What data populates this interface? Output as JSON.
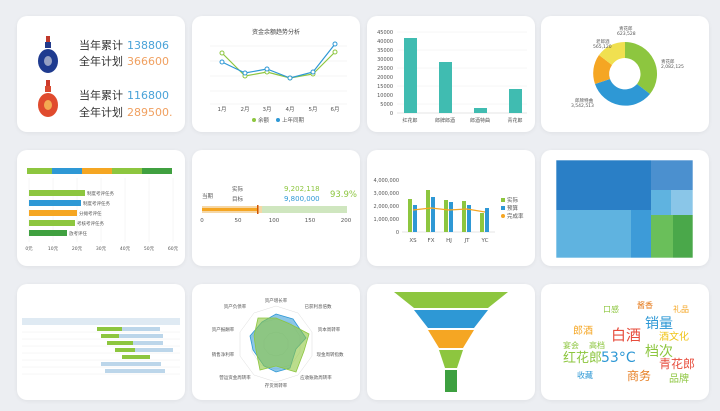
{
  "kpi": {
    "row1_label": "当年累计",
    "row1_value": "138806",
    "row2_label": "全年计划",
    "row2_value": "366600",
    "row3_label": "当年累计",
    "row3_value": "116800",
    "row4_label": "全年计划",
    "row4_value": "289500."
  },
  "line_chart": {
    "title": "资金余额趋势分析",
    "x": [
      "1月",
      "2月",
      "3月",
      "4月",
      "5月",
      "6月"
    ],
    "legend": [
      "余额",
      "上年同期"
    ]
  },
  "bar_chart": {
    "y_ticks": [
      "45000",
      "40000",
      "35000",
      "30000",
      "25000",
      "20000",
      "15000",
      "10000",
      "5000",
      "0"
    ],
    "categories": [
      "红花郎",
      "郎牌郎酒",
      "郎酒特曲",
      "青花郎"
    ]
  },
  "donut": {
    "labels": [
      "青花郎\n623,528",
      "老郎酒\n565,120",
      "青花郎\n2,082,125",
      "郎牌特曲\n3,542,513"
    ],
    "l1": "青花郎",
    "v1": "623,528",
    "l2": "老郎酒",
    "v2": "565,120",
    "l3": "青花郎",
    "v3": "2,082,125",
    "l4": "郎牌特曲",
    "v4": "3,542,513"
  },
  "hbar": {
    "rows": [
      "制度考评任务",
      "制度考评任务",
      "分摊考评任",
      "考核考评任务",
      "放考评任"
    ],
    "x": [
      "0元",
      "10元",
      "20元",
      "30元",
      "40元",
      "50元",
      "60元"
    ]
  },
  "progress": {
    "label_a": "当期",
    "label_b": "实际",
    "label_c": "目标",
    "actual": "9,202,118",
    "target": "9,800,000",
    "pct": "93.9%",
    "ticks": [
      "0",
      "50",
      "100",
      "150",
      "200"
    ]
  },
  "combo": {
    "y_ticks": [
      "4,000,000",
      "3,000,000",
      "2,000,000",
      "1,000,000",
      "0"
    ],
    "x": [
      "XS",
      "FX",
      "HJ",
      "JT",
      "YC"
    ],
    "legend": [
      "实际",
      "预算",
      "完成率"
    ]
  },
  "radar": {
    "axes": [
      "资产增长率",
      "已获利息倍数",
      "资本周转率",
      "现金周转指数",
      "应收账款周转率",
      "存货周转率",
      "营运资金周转率",
      "销售净利率",
      "资产报酬率",
      "资产负债率"
    ]
  },
  "wordcloud": {
    "words": [
      "白酒",
      "销量",
      "郎酒",
      "53°C",
      "档次",
      "青花郎",
      "红花郎",
      "商务",
      "酒文化",
      "品牌",
      "宴会",
      "高档",
      "礼品",
      "收藏",
      "口感",
      "酱香"
    ]
  },
  "colors": {
    "teal": "#40bcb1",
    "green": "#8dc63f",
    "blue": "#2e98d5",
    "orange": "#f5a623",
    "yellow": "#f0c419"
  }
}
